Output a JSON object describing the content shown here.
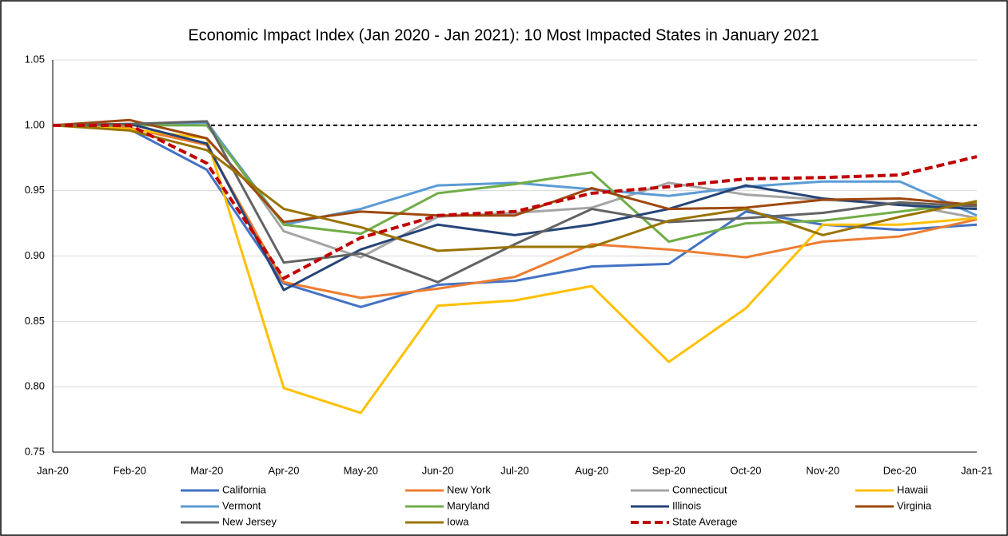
{
  "chart_data": {
    "type": "line",
    "title": "Economic Impact Index (Jan 2020 - Jan 2021): 10 Most Impacted States in January 2021",
    "categories": [
      "Jan-20",
      "Feb-20",
      "Mar-20",
      "Apr-20",
      "May-20",
      "Jun-20",
      "Jul-20",
      "Aug-20",
      "Sep-20",
      "Oct-20",
      "Nov-20",
      "Dec-20",
      "Jan-21"
    ],
    "ylim": [
      0.75,
      1.05
    ],
    "yticks": [
      0.75,
      {
        "value": 0.8,
        "label": "0.80"
      },
      0.85,
      {
        "value": 0.9,
        "label": "0.90"
      },
      0.95,
      {
        "value": 1,
        "label": "1.00"
      },
      1.05
    ],
    "grid": true,
    "reference_line": {
      "value": 1,
      "color": "#000000",
      "style": "dashed"
    },
    "legend": "bottom",
    "series": [
      {
        "name": "California",
        "color": "#4472c4",
        "style": "solid",
        "values": [
          1.0,
          0.997,
          0.966,
          0.879,
          0.861,
          0.878,
          0.881,
          0.892,
          0.894,
          0.934,
          0.924,
          0.92,
          0.924
        ]
      },
      {
        "name": "New York",
        "color": "#ed7d31",
        "style": "solid",
        "values": [
          1.0,
          0.998,
          0.985,
          0.88,
          0.868,
          0.875,
          0.884,
          0.909,
          0.905,
          0.899,
          0.911,
          0.915,
          0.928
        ]
      },
      {
        "name": "Connecticut",
        "color": "#a5a5a5",
        "style": "solid",
        "values": [
          1.0,
          1.0,
          1.003,
          0.919,
          0.899,
          0.93,
          0.933,
          0.937,
          0.956,
          0.947,
          0.943,
          0.94,
          0.929
        ]
      },
      {
        "name": "Hawaii",
        "color": "#ffc000",
        "style": "solid",
        "values": [
          1.0,
          0.997,
          0.99,
          0.799,
          0.78,
          0.862,
          0.866,
          0.877,
          0.819,
          0.86,
          0.924,
          0.924,
          0.929
        ]
      },
      {
        "name": "Vermont",
        "color": "#5b9bd5",
        "style": "solid",
        "values": [
          1.0,
          1.0,
          1.002,
          0.924,
          0.936,
          0.954,
          0.956,
          0.951,
          0.946,
          0.953,
          0.957,
          0.957,
          0.931
        ]
      },
      {
        "name": "Maryland",
        "color": "#70ad47",
        "style": "solid",
        "values": [
          1.0,
          1.0,
          1.0,
          0.924,
          0.917,
          0.948,
          0.955,
          0.964,
          0.911,
          0.925,
          0.927,
          0.934,
          0.941
        ]
      },
      {
        "name": "Illinois",
        "color": "#264478",
        "style": "solid",
        "values": [
          1.0,
          1.001,
          0.986,
          0.874,
          0.905,
          0.924,
          0.916,
          0.924,
          0.936,
          0.954,
          0.944,
          0.939,
          0.936
        ]
      },
      {
        "name": "Virginia",
        "color": "#9e480e",
        "style": "solid",
        "values": [
          1.0,
          1.004,
          0.99,
          0.926,
          0.934,
          0.931,
          0.931,
          0.952,
          0.936,
          0.937,
          0.943,
          0.944,
          0.939
        ]
      },
      {
        "name": "New Jersey",
        "color": "#636363",
        "style": "solid",
        "values": [
          1.0,
          1.001,
          1.003,
          0.895,
          0.902,
          0.88,
          0.909,
          0.936,
          0.926,
          0.929,
          0.933,
          0.941,
          0.938
        ]
      },
      {
        "name": "Iowa",
        "color": "#997300",
        "style": "solid",
        "values": [
          1.0,
          0.996,
          0.981,
          0.936,
          0.922,
          0.904,
          0.907,
          0.907,
          0.927,
          0.936,
          0.916,
          0.93,
          0.942
        ]
      },
      {
        "name": "State Average",
        "color": "#c00000",
        "style": "dashed",
        "values": [
          1.0,
          1.0,
          0.971,
          0.883,
          0.914,
          0.931,
          0.934,
          0.948,
          0.953,
          0.959,
          0.96,
          0.962,
          0.976
        ]
      }
    ]
  }
}
